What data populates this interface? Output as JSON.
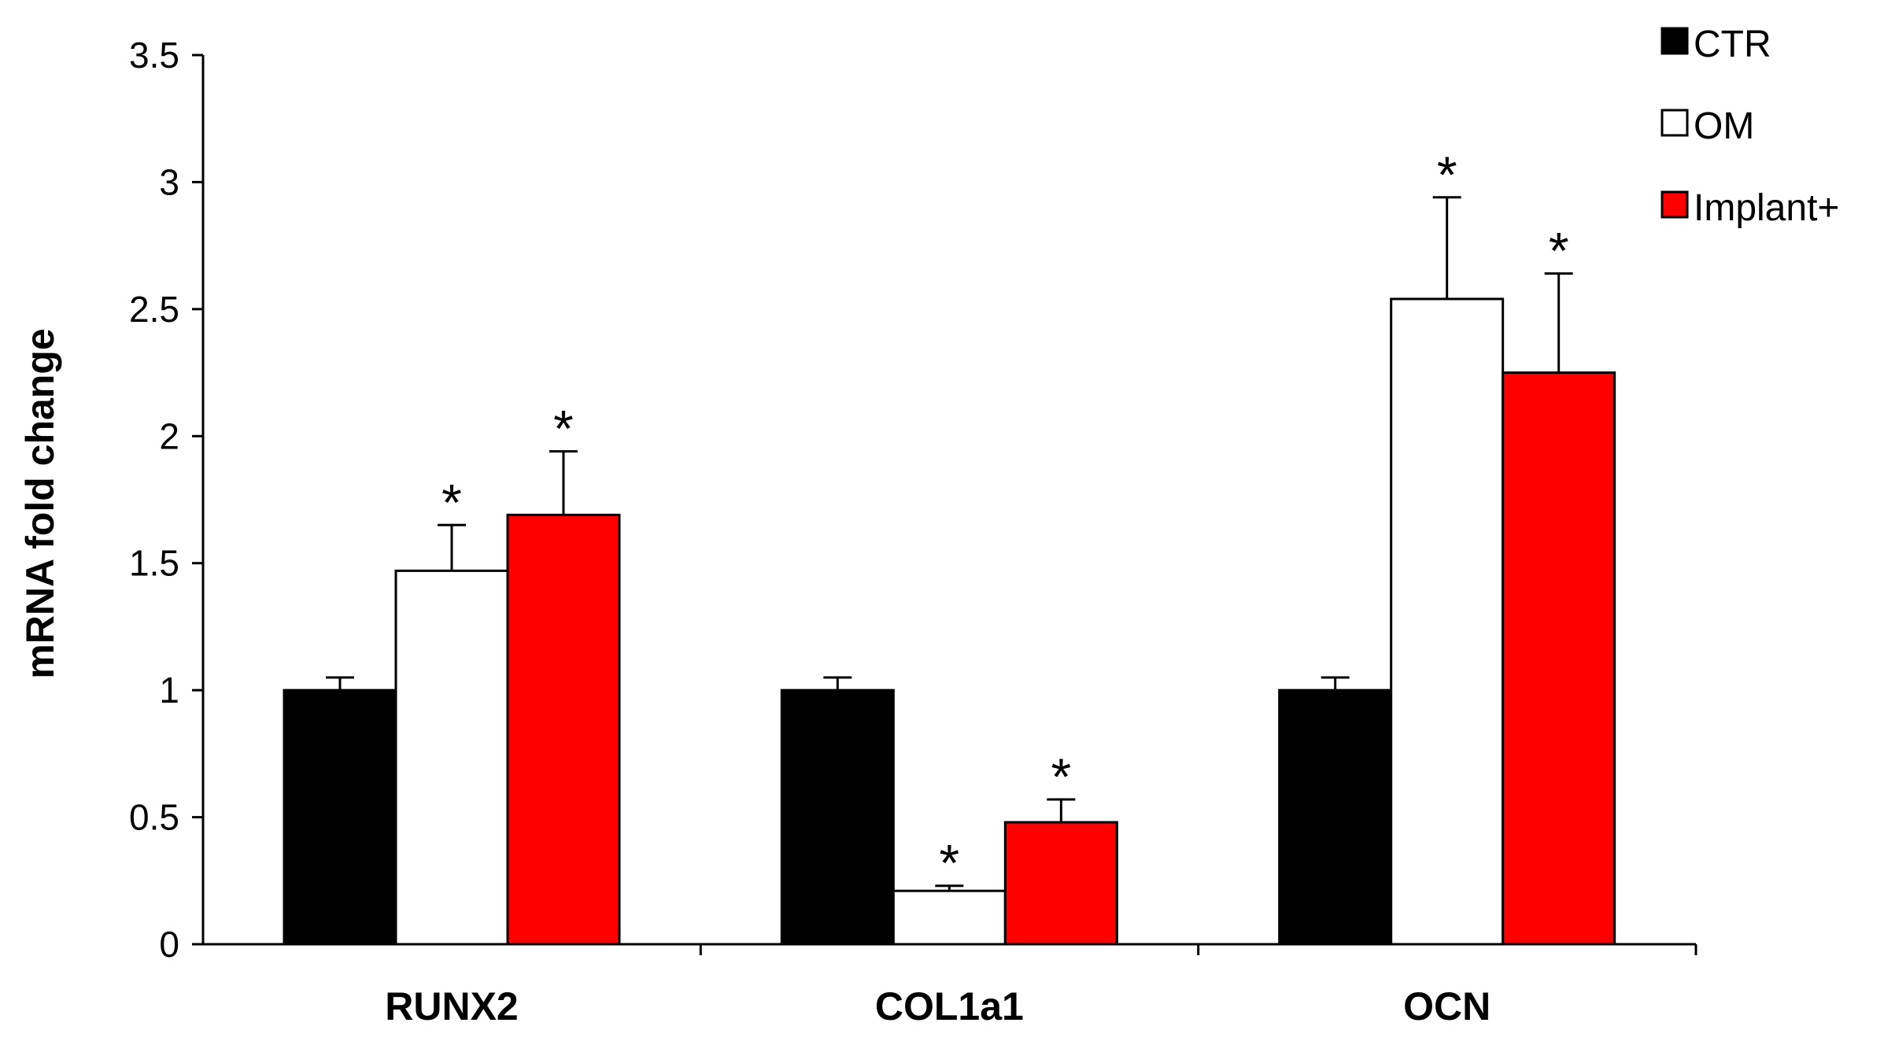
{
  "chart_data": {
    "type": "bar",
    "title": "",
    "xlabel": "",
    "ylabel": "mRNA fold change",
    "ylim": [
      0,
      3.5
    ],
    "yticks": [
      "0",
      "0.5",
      "1",
      "1.5",
      "2",
      "2.5",
      "3",
      "3.5"
    ],
    "categories": [
      "RUNX2",
      "COL1a1",
      "OCN"
    ],
    "series": [
      {
        "name": "CTR",
        "color": "#000000",
        "values": [
          1.0,
          1.0,
          1.0
        ],
        "errors": [
          0.05,
          0.05,
          0.05
        ],
        "significant": [
          false,
          false,
          false
        ]
      },
      {
        "name": "OM",
        "color": "#ffffff",
        "values": [
          1.47,
          0.21,
          2.54
        ],
        "errors": [
          0.18,
          0.02,
          0.4
        ],
        "significant": [
          true,
          true,
          true
        ]
      },
      {
        "name": "Implant+",
        "color": "#ff0000",
        "values": [
          1.69,
          0.48,
          2.25
        ],
        "errors": [
          0.25,
          0.09,
          0.39
        ],
        "significant": [
          true,
          true,
          true
        ]
      }
    ],
    "significance_marker": "*",
    "legend_position": "top-right"
  }
}
